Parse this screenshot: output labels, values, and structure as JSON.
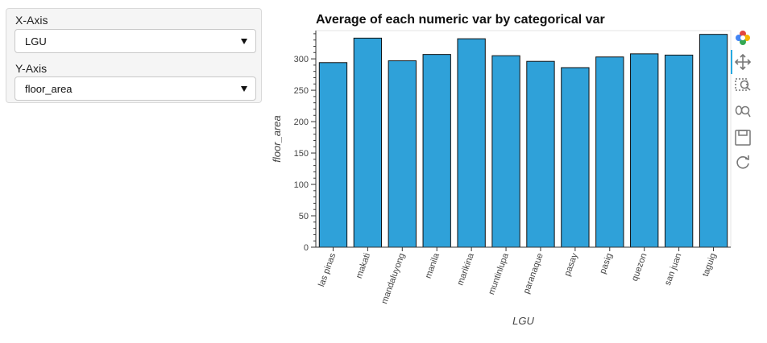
{
  "widgets": {
    "x_axis": {
      "label": "X-Axis",
      "value": "LGU"
    },
    "y_axis": {
      "label": "Y-Axis",
      "value": "floor_area"
    }
  },
  "toolbar": {
    "tools": [
      "bokeh-logo-icon",
      "pan-icon",
      "box-zoom-icon",
      "wheel-zoom-icon",
      "save-icon",
      "reset-icon"
    ]
  },
  "chart_data": {
    "type": "bar",
    "title": "Average of each numeric var by categorical var",
    "xlabel": "LGU",
    "ylabel": "floor_area",
    "categories": [
      "las pinas",
      "makati",
      "mandaluyong",
      "manila",
      "marikina",
      "muntinlupa",
      "paranaque",
      "pasay",
      "pasig",
      "quezon",
      "san juan",
      "taguig"
    ],
    "values": [
      294,
      333,
      297,
      307,
      332,
      305,
      296,
      286,
      303,
      308,
      306,
      339
    ],
    "ylim": [
      0,
      345
    ],
    "yticks": [
      0,
      50,
      100,
      150,
      200,
      250,
      300
    ],
    "bar_color": "#2fa1d9",
    "grid": false
  }
}
